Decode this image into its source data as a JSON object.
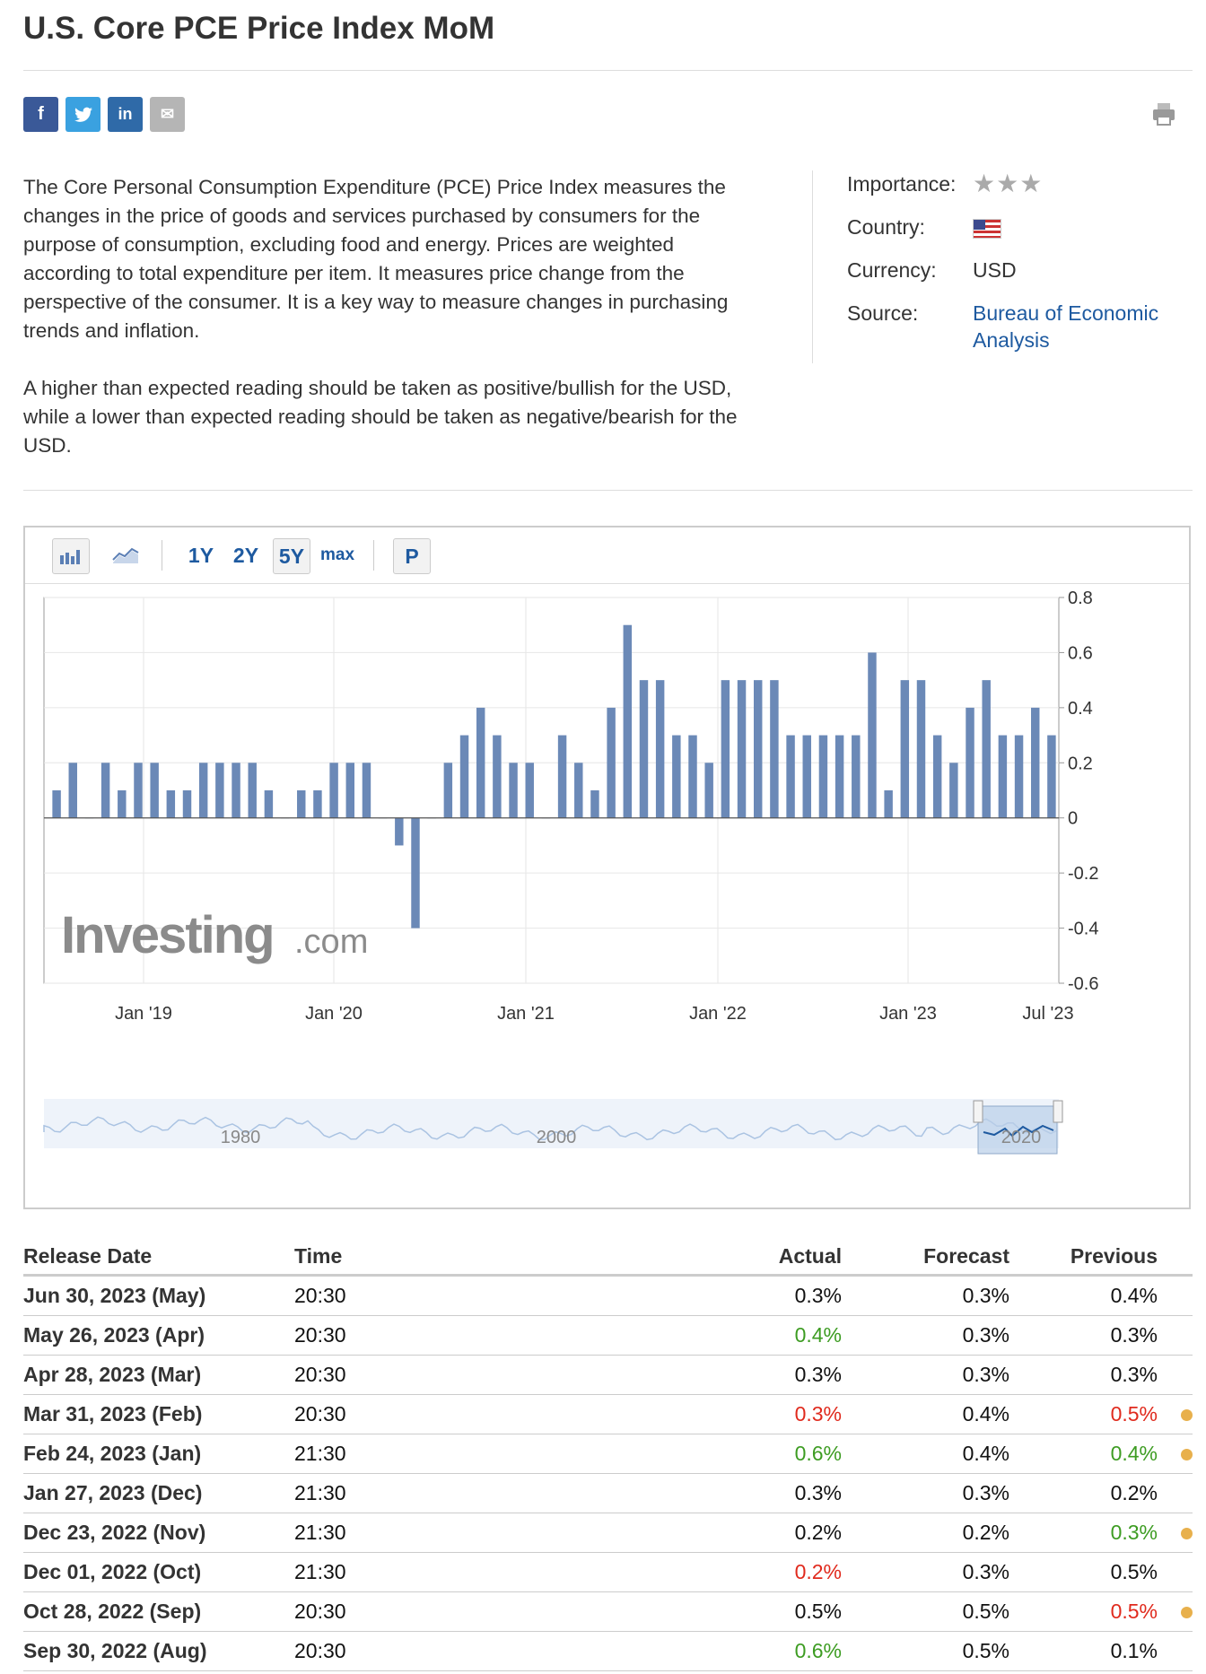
{
  "page": {
    "title": "U.S. Core PCE Price Index MoM",
    "description": [
      "The Core Personal Consumption Expenditure (PCE) Price Index measures the changes in the price of goods and services purchased by consumers for the purpose of consumption, excluding food and energy. Prices are weighted according to total expenditure per item. It measures price change from the perspective of the consumer. It is a key way to measure changes in purchasing trends and inflation.",
      "A higher than expected reading should be taken as positive/bullish for the USD, while a lower than expected reading should be taken as negative/bearish for the USD."
    ]
  },
  "share": {
    "facebook": "f",
    "twitter": "t",
    "linkedin": "in",
    "email": "✉"
  },
  "info": {
    "importance_label": "Importance:",
    "importance_stars": "★★★",
    "country_label": "Country:",
    "currency_label": "Currency:",
    "currency": "USD",
    "source_label": "Source:",
    "source": "Bureau of Economic Analysis"
  },
  "toolbar": {
    "r1y": "1Y",
    "r2y": "2Y",
    "r5y": "5Y",
    "rmax": "max",
    "p": "P"
  },
  "brand": {
    "big": "Investing",
    "small": ".com"
  },
  "navigator": {
    "labels": [
      "1980",
      "2000",
      "2020"
    ]
  },
  "colors": {
    "bar": "#6b89b7",
    "green": "#3d9c22",
    "red": "#e02a1d",
    "dot": "#e8b04c",
    "link": "#1e5aa0"
  },
  "chart_data": {
    "type": "bar",
    "title": "",
    "xlabel": "",
    "ylabel": "",
    "ylim": [
      -0.6,
      0.8
    ],
    "yticks": [
      "0.8",
      "0.6",
      "0.4",
      "0.2",
      "0",
      "-0.2",
      "-0.4",
      "-0.6"
    ],
    "xticks": [
      "Jan '19",
      "Jan '20",
      "Jan '21",
      "Jan '22",
      "Jan '23",
      "Jul '23"
    ],
    "values": [
      0.1,
      0.2,
      0.0,
      0.2,
      0.1,
      0.2,
      0.2,
      0.1,
      0.1,
      0.2,
      0.2,
      0.2,
      0.2,
      0.1,
      0.0,
      0.1,
      0.1,
      0.2,
      0.2,
      0.2,
      0.0,
      -0.1,
      -0.4,
      0.0,
      0.2,
      0.3,
      0.4,
      0.3,
      0.2,
      0.2,
      0.0,
      0.3,
      0.2,
      0.1,
      0.4,
      0.7,
      0.5,
      0.5,
      0.3,
      0.3,
      0.2,
      0.5,
      0.5,
      0.5,
      0.5,
      0.3,
      0.3,
      0.3,
      0.3,
      0.3,
      0.6,
      0.1,
      0.5,
      0.5,
      0.3,
      0.2,
      0.4,
      0.5,
      0.3,
      0.3,
      0.4,
      0.3
    ]
  },
  "table": {
    "headers": {
      "date": "Release Date",
      "time": "Time",
      "actual": "Actual",
      "forecast": "Forecast",
      "previous": "Previous"
    },
    "rows": [
      {
        "date": "Jun 30, 2023 (May)",
        "time": "20:30",
        "actual": "0.3%",
        "actual_color": "",
        "forecast": "0.3%",
        "previous": "0.4%",
        "previous_color": "",
        "revised": false
      },
      {
        "date": "May 26, 2023 (Apr)",
        "time": "20:30",
        "actual": "0.4%",
        "actual_color": "green",
        "forecast": "0.3%",
        "previous": "0.3%",
        "previous_color": "",
        "revised": false
      },
      {
        "date": "Apr 28, 2023 (Mar)",
        "time": "20:30",
        "actual": "0.3%",
        "actual_color": "",
        "forecast": "0.3%",
        "previous": "0.3%",
        "previous_color": "",
        "revised": false
      },
      {
        "date": "Mar 31, 2023 (Feb)",
        "time": "20:30",
        "actual": "0.3%",
        "actual_color": "red",
        "forecast": "0.4%",
        "previous": "0.5%",
        "previous_color": "red",
        "revised": true
      },
      {
        "date": "Feb 24, 2023 (Jan)",
        "time": "21:30",
        "actual": "0.6%",
        "actual_color": "green",
        "forecast": "0.4%",
        "previous": "0.4%",
        "previous_color": "green",
        "revised": true
      },
      {
        "date": "Jan 27, 2023 (Dec)",
        "time": "21:30",
        "actual": "0.3%",
        "actual_color": "",
        "forecast": "0.3%",
        "previous": "0.2%",
        "previous_color": "",
        "revised": false
      },
      {
        "date": "Dec 23, 2022 (Nov)",
        "time": "21:30",
        "actual": "0.2%",
        "actual_color": "",
        "forecast": "0.2%",
        "previous": "0.3%",
        "previous_color": "green",
        "revised": true
      },
      {
        "date": "Dec 01, 2022 (Oct)",
        "time": "21:30",
        "actual": "0.2%",
        "actual_color": "red",
        "forecast": "0.3%",
        "previous": "0.5%",
        "previous_color": "",
        "revised": false
      },
      {
        "date": "Oct 28, 2022 (Sep)",
        "time": "20:30",
        "actual": "0.5%",
        "actual_color": "",
        "forecast": "0.5%",
        "previous": "0.5%",
        "previous_color": "red",
        "revised": true
      },
      {
        "date": "Sep 30, 2022 (Aug)",
        "time": "20:30",
        "actual": "0.6%",
        "actual_color": "green",
        "forecast": "0.5%",
        "previous": "0.1%",
        "previous_color": "",
        "revised": false
      }
    ]
  }
}
